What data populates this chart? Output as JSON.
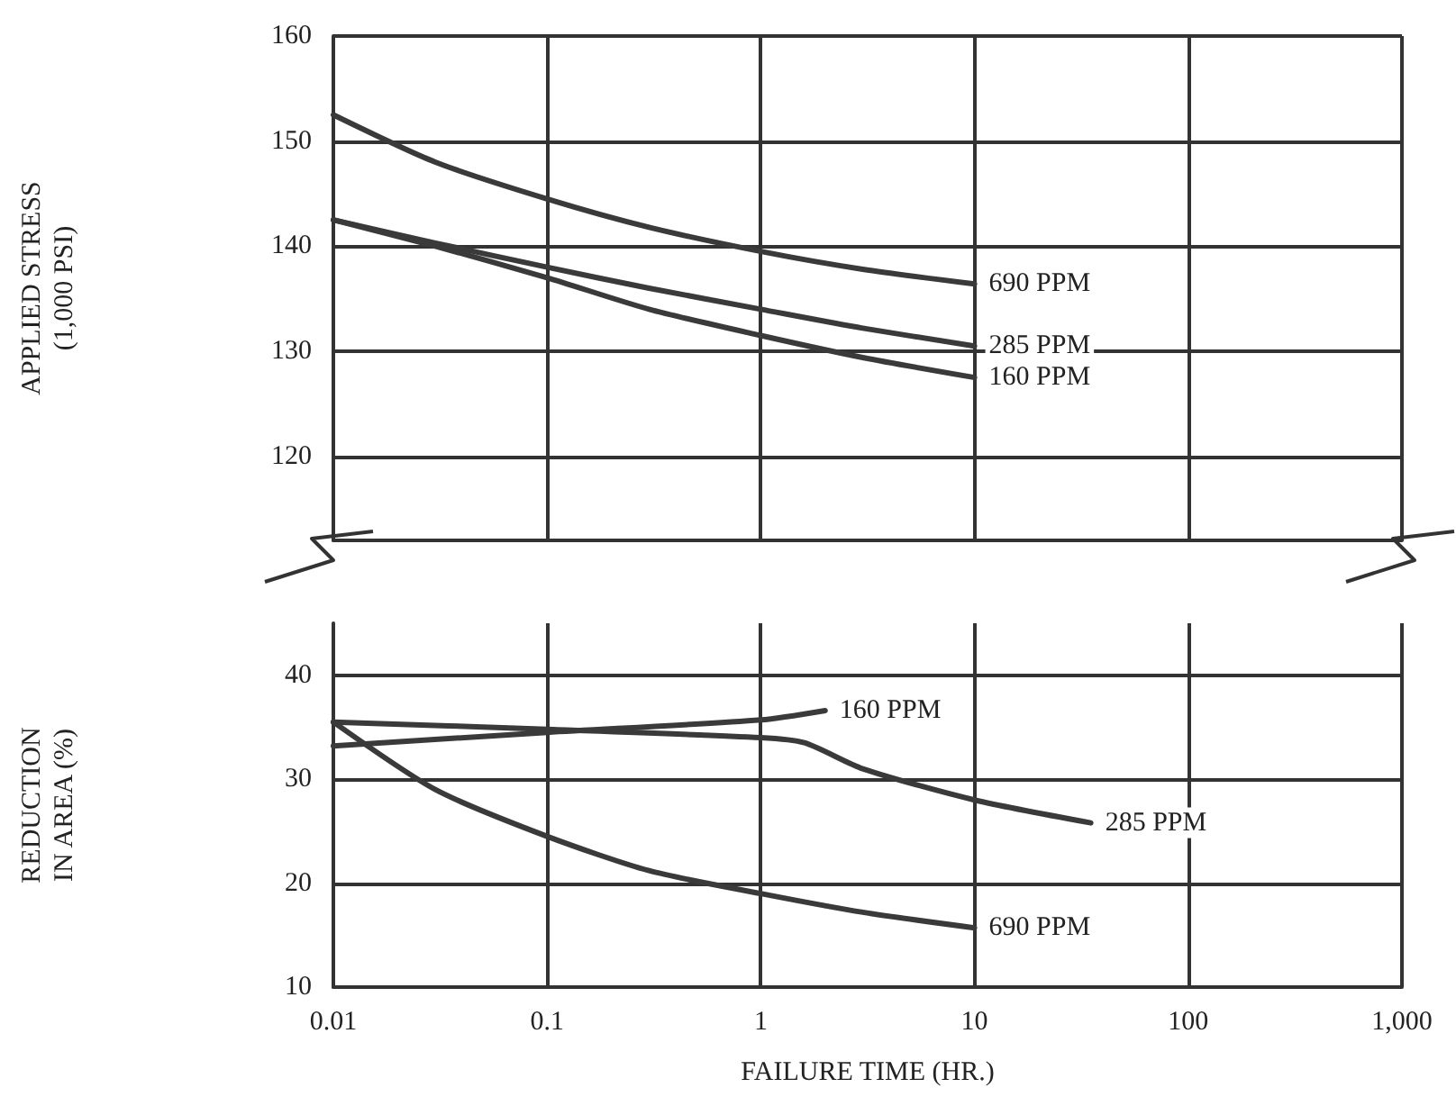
{
  "chart_data": [
    {
      "type": "line",
      "ylabel": "APPLIED STRESS\n(1,000 PSI)",
      "log": "x",
      "grid": true,
      "legend": false,
      "marker": "none",
      "line_style": "solid",
      "tick_labels": "y",
      "xlim": [
        0.01,
        1000
      ],
      "xticks": [
        0.01,
        0.1,
        1,
        10,
        100,
        1000
      ],
      "ylim": [
        112,
        160
      ],
      "yticks": [
        120,
        130,
        140,
        150,
        160
      ],
      "series": [
        {
          "name": "690 PPM",
          "color": "#3a3a3a",
          "x": [
            0.01,
            0.03,
            0.1,
            0.3,
            1,
            3,
            10
          ],
          "values": [
            152.5,
            148,
            144.5,
            141.8,
            139.5,
            137.8,
            136.4
          ]
        },
        {
          "name": "285 PPM",
          "color": "#3a3a3a",
          "x": [
            0.01,
            0.03,
            0.1,
            0.3,
            1,
            3,
            10
          ],
          "values": [
            142.5,
            140.3,
            138,
            136,
            134,
            132.2,
            130.5
          ]
        },
        {
          "name": "160 PPM",
          "color": "#3a3a3a",
          "x": [
            0.01,
            0.03,
            0.1,
            0.3,
            1,
            3,
            10
          ],
          "values": [
            142.5,
            140,
            137,
            134,
            131.5,
            129.4,
            127.5
          ]
        }
      ]
    },
    {
      "type": "line",
      "ylabel": "REDUCTION\nIN AREA (%)",
      "xlabel": "FAILURE TIME (HR.)",
      "log": "x",
      "grid": true,
      "legend": false,
      "marker": "none",
      "line_style": "solid",
      "xlim": [
        0.01,
        1000
      ],
      "xticks": [
        0.01,
        0.1,
        1,
        10,
        100,
        {
          "value": 1000,
          "label": "1,000"
        }
      ],
      "ylim": [
        10,
        45
      ],
      "yticks": [
        10,
        20,
        30,
        40
      ],
      "series": [
        {
          "name": "160 PPM",
          "color": "#3a3a3a",
          "x": [
            0.01,
            0.1,
            1,
            2
          ],
          "values": [
            33.2,
            34.5,
            35.7,
            36.6
          ]
        },
        {
          "name": "285 PPM",
          "color": "#3a3a3a",
          "x": [
            0.01,
            0.1,
            1,
            1.6,
            3,
            10,
            35
          ],
          "values": [
            35.5,
            34.8,
            34,
            33.5,
            31,
            28,
            25.8
          ]
        },
        {
          "name": "690 PPM",
          "color": "#3a3a3a",
          "x": [
            0.01,
            0.03,
            0.1,
            0.3,
            1,
            3,
            10
          ],
          "values": [
            35.5,
            29,
            24.5,
            21.2,
            19,
            17.2,
            15.7
          ]
        }
      ]
    }
  ]
}
